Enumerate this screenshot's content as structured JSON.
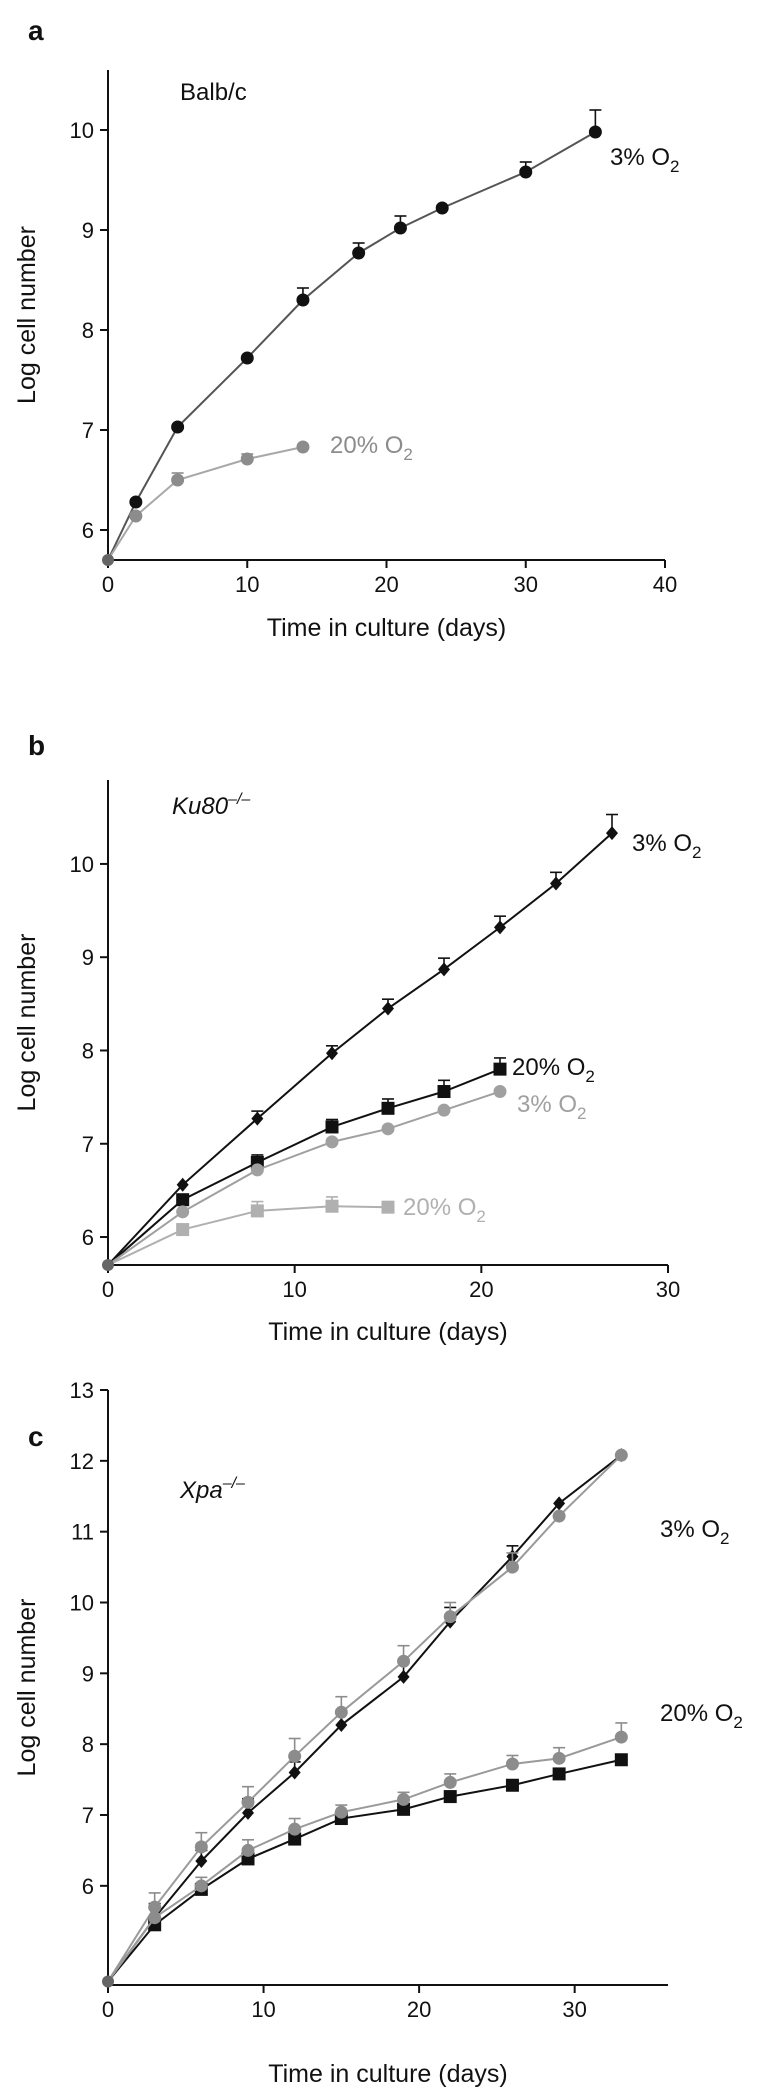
{
  "chart_data": [
    {
      "type": "line",
      "panel_label": "a",
      "title": "Balb/c",
      "title_italic": false,
      "xlabel": "Time in culture (days)",
      "ylabel": "Log cell number",
      "xlim": [
        0,
        40
      ],
      "ylim": [
        5.7,
        10.6
      ],
      "xticks": [
        0,
        10,
        20,
        30,
        40
      ],
      "yticks": [
        6,
        7,
        8,
        9,
        10
      ],
      "grid": false,
      "series": [
        {
          "name": "3% O2",
          "label_main": "3% O",
          "label_sub": "2",
          "color": "#111111",
          "line_color": "#555555",
          "marker": "circle",
          "x": [
            0,
            2,
            5,
            10,
            14,
            18,
            21,
            24,
            30,
            35
          ],
          "y": [
            5.7,
            6.28,
            7.03,
            7.72,
            8.3,
            8.77,
            9.02,
            9.22,
            9.58,
            9.98
          ],
          "err": [
            0,
            0,
            0,
            0,
            0.12,
            0.1,
            0.12,
            0,
            0.1,
            0.22
          ]
        },
        {
          "name": "20% O2",
          "label_main": "20% O",
          "label_sub": "2",
          "color": "#8c8c8c",
          "line_color": "#a8a8a8",
          "marker": "circle",
          "x": [
            0,
            2,
            5,
            10,
            14
          ],
          "y": [
            5.7,
            6.14,
            6.5,
            6.71,
            6.83
          ],
          "err": [
            0,
            0,
            0.07,
            0.05,
            0
          ]
        }
      ]
    },
    {
      "type": "line",
      "panel_label": "b",
      "title": "Ku80",
      "title_sup": "–/–",
      "title_italic": true,
      "xlabel": "Time in culture (days)",
      "ylabel": "Log cell number",
      "xlim": [
        0,
        30
      ],
      "ylim": [
        5.7,
        10.9
      ],
      "xticks": [
        0,
        10,
        20,
        30
      ],
      "yticks": [
        6,
        7,
        8,
        9,
        10
      ],
      "grid": false,
      "series": [
        {
          "name": "3% O2",
          "label_main": "3% O",
          "label_sub": "2",
          "color": "#111111",
          "line_color": "#111111",
          "marker": "diamond",
          "x": [
            0,
            4,
            8,
            12,
            15,
            18,
            21,
            24,
            27
          ],
          "y": [
            5.7,
            6.56,
            7.27,
            7.97,
            8.45,
            8.87,
            9.32,
            9.79,
            10.33
          ],
          "err": [
            0,
            0,
            0.08,
            0.08,
            0.1,
            0.12,
            0.12,
            0.12,
            0.2
          ]
        },
        {
          "name": "20% O2",
          "label_main": "20% O",
          "label_sub": "2",
          "color": "#111111",
          "line_color": "#111111",
          "marker": "square",
          "x": [
            0,
            4,
            8,
            12,
            15,
            18,
            21
          ],
          "y": [
            5.7,
            6.4,
            6.8,
            7.18,
            7.38,
            7.56,
            7.8
          ],
          "err": [
            0,
            0,
            0.08,
            0.08,
            0.1,
            0.12,
            0.12
          ]
        },
        {
          "name": "3% O2",
          "label_main": "3% O",
          "label_sub": "2",
          "color": "#a0a0a0",
          "line_color": "#a0a0a0",
          "marker": "circle",
          "x": [
            0,
            4,
            8,
            12,
            15,
            18,
            21
          ],
          "y": [
            5.7,
            6.27,
            6.72,
            7.02,
            7.16,
            7.36,
            7.56
          ],
          "err": [
            0,
            0,
            0,
            0,
            0,
            0,
            0
          ]
        },
        {
          "name": "20% O2",
          "label_main": "20% O",
          "label_sub": "2",
          "color": "#b0b0b0",
          "line_color": "#b0b0b0",
          "marker": "square",
          "x": [
            0,
            4,
            8,
            12,
            15
          ],
          "y": [
            5.7,
            6.08,
            6.28,
            6.33,
            6.32
          ],
          "err": [
            0,
            0,
            0.1,
            0.1,
            0
          ]
        }
      ]
    },
    {
      "type": "line",
      "panel_label": "c",
      "title": "Xpa",
      "title_sup": "–/–",
      "title_italic": true,
      "xlabel": "Time in culture (days)",
      "ylabel": "Log cell number",
      "xlim": [
        0,
        36
      ],
      "ylim": [
        4.6,
        13
      ],
      "xticks": [
        0,
        10,
        20,
        30
      ],
      "yticks": [
        6,
        7,
        8,
        9,
        10,
        11,
        12,
        13
      ],
      "grid": false,
      "series": [
        {
          "name": "3% O2",
          "label_main": "3% O",
          "label_sub": "2",
          "color": "#111111",
          "line_color": "#111111",
          "marker": "diamond",
          "x": [
            0,
            3,
            6,
            9,
            12,
            15,
            19,
            22,
            26,
            29,
            33
          ],
          "y": [
            4.65,
            5.55,
            6.35,
            7.03,
            7.6,
            8.27,
            8.95,
            9.73,
            10.65,
            11.4,
            12.08
          ],
          "err": [
            0,
            0.2,
            0.15,
            0.2,
            0.15,
            0.2,
            0.2,
            0.2,
            0.15,
            0,
            0
          ]
        },
        {
          "name": "3% O2",
          "label_main": "3% O",
          "label_sub": "2",
          "color": "#8c8c8c",
          "line_color": "#9a9a9a",
          "marker": "circle",
          "x": [
            0,
            3,
            6,
            9,
            12,
            15,
            19,
            22,
            26,
            29,
            33
          ],
          "y": [
            4.65,
            5.7,
            6.55,
            7.18,
            7.83,
            8.45,
            9.17,
            9.8,
            10.5,
            11.22,
            12.08
          ],
          "err": [
            0,
            0.2,
            0.2,
            0.22,
            0.25,
            0.22,
            0.22,
            0.2,
            0.2,
            0,
            0
          ]
        },
        {
          "name": "20% O2",
          "label_main": "20% O",
          "label_sub": "2",
          "color": "#111111",
          "line_color": "#111111",
          "marker": "square",
          "x": [
            0,
            3,
            6,
            9,
            12,
            15,
            19,
            22,
            26,
            29,
            33
          ],
          "y": [
            4.65,
            5.45,
            5.95,
            6.38,
            6.66,
            6.95,
            7.08,
            7.26,
            7.42,
            7.58,
            7.78
          ],
          "err": [
            0,
            0,
            0,
            0,
            0,
            0,
            0,
            0,
            0,
            0,
            0
          ]
        },
        {
          "name": "20% O2",
          "label_main": "20% O",
          "label_sub": "2",
          "color": "#8c8c8c",
          "line_color": "#9a9a9a",
          "marker": "circle",
          "x": [
            0,
            3,
            6,
            9,
            12,
            15,
            19,
            22,
            26,
            29,
            33
          ],
          "y": [
            4.65,
            5.55,
            6.0,
            6.5,
            6.8,
            7.04,
            7.22,
            7.46,
            7.72,
            7.8,
            8.1
          ],
          "err": [
            0,
            0.15,
            0.12,
            0.15,
            0.15,
            0.1,
            0.1,
            0.12,
            0.12,
            0.15,
            0.2
          ]
        }
      ]
    }
  ]
}
